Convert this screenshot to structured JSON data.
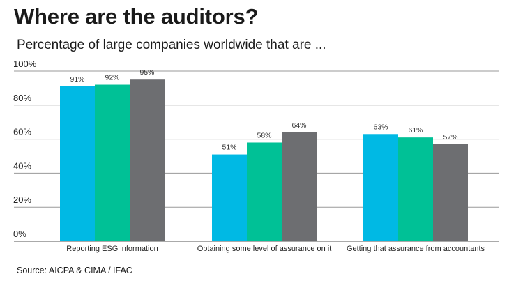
{
  "header": {
    "title": "Where are the auditors?",
    "subtitle": "Percentage of large companies worldwide that are ...",
    "source": "Source: AICPA & CIMA / IFAC"
  },
  "chart_data": {
    "type": "bar",
    "title": "Where are the auditors?",
    "subtitle": "Percentage of large companies worldwide that are ...",
    "categories": [
      "Reporting ESG information",
      "Obtaining some level of assurance on it",
      "Getting that assurance from accountants"
    ],
    "series": [
      {
        "values": [
          91,
          51,
          63
        ],
        "labels": [
          "91%",
          "51%",
          "63%"
        ],
        "color": "#00b9e4"
      },
      {
        "values": [
          92,
          58,
          61
        ],
        "labels": [
          "92%",
          "58%",
          "61%"
        ],
        "color": "#00c196"
      },
      {
        "values": [
          95,
          64,
          57
        ],
        "labels": [
          "95%",
          "64%",
          "57%"
        ],
        "color": "#6d6e71"
      }
    ],
    "yticks": [
      "0%",
      "20%",
      "40%",
      "60%",
      "80%",
      "100%"
    ],
    "ylim": [
      0,
      100
    ],
    "grid": true,
    "xlabel": "",
    "ylabel": ""
  }
}
